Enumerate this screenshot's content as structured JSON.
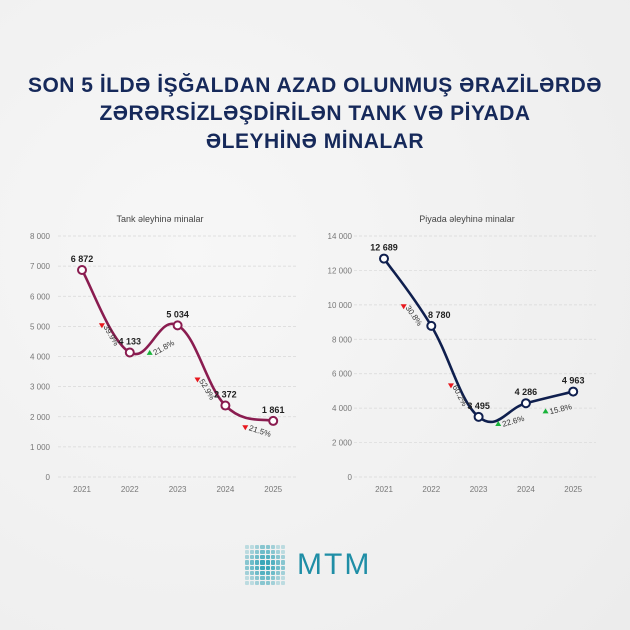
{
  "title": [
    "SON 5 İLDƏ İŞĞALDAN AZAD OLUNMUŞ ƏRAZİLƏRDƏ",
    "ZƏRƏRSİZLƏŞDİRİLƏN TANK VƏ PİYADA",
    "ƏLEYHİNƏ MİNALAR"
  ],
  "logo_text": "MTM",
  "colors": {
    "tank": "#8a1c50",
    "piyada": "#0f1f4e",
    "up": "#19b33a",
    "down": "#e8171d"
  },
  "chart_data": [
    {
      "type": "line",
      "title": "Tank əleyhinə minalar",
      "categories": [
        "2021",
        "2022",
        "2023",
        "2024",
        "2025"
      ],
      "values": [
        6872,
        4133,
        5034,
        2372,
        1861
      ],
      "labels": [
        "6 872",
        "4 133",
        "5 034",
        "2 372",
        "1 861"
      ],
      "ylim": [
        0,
        8000
      ],
      "yticks": [
        "0",
        "1 000",
        "2 000",
        "3 000",
        "4 000",
        "5 000",
        "6 000",
        "7 000",
        "8 000"
      ],
      "changes": [
        {
          "dir": "down",
          "label": "39.9%"
        },
        {
          "dir": "up",
          "label": "21.8%"
        },
        {
          "dir": "down",
          "label": "52.9%"
        },
        {
          "dir": "down",
          "label": "21.5%"
        }
      ],
      "grid": true
    },
    {
      "type": "line",
      "title": "Piyada əleyhinə minalar",
      "categories": [
        "2021",
        "2022",
        "2023",
        "2024",
        "2025"
      ],
      "values": [
        12689,
        8780,
        3495,
        4286,
        4963
      ],
      "labels": [
        "12 689",
        "8 780",
        "3 495",
        "4 286",
        "4 963"
      ],
      "ylim": [
        0,
        14000
      ],
      "yticks": [
        "0",
        "2 000",
        "4 000",
        "6 000",
        "8 000",
        "10 000",
        "12 000",
        "14 000"
      ],
      "changes": [
        {
          "dir": "down",
          "label": "30.8%"
        },
        {
          "dir": "down",
          "label": "60.2%"
        },
        {
          "dir": "up",
          "label": "22.6%"
        },
        {
          "dir": "up",
          "label": "15.8%"
        }
      ],
      "grid": true
    }
  ]
}
